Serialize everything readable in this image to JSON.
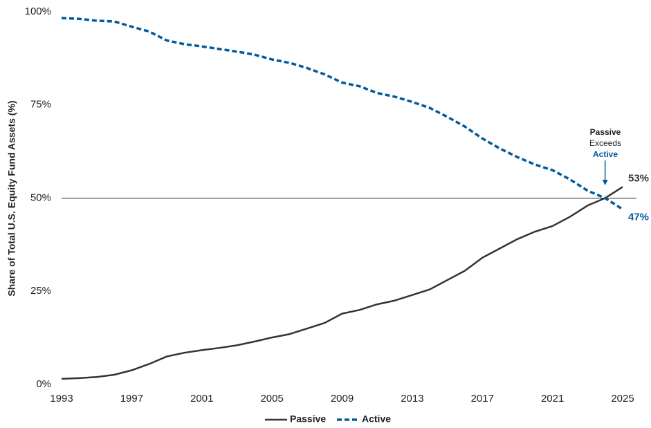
{
  "chart_data": {
    "type": "line",
    "y_label": "Share of Total U.S. Equity Fund Assets (%)",
    "x": [
      1993,
      1994,
      1995,
      1996,
      1997,
      1998,
      1999,
      2000,
      2001,
      2002,
      2003,
      2004,
      2005,
      2006,
      2007,
      2008,
      2009,
      2010,
      2011,
      2012,
      2013,
      2014,
      2015,
      2016,
      2017,
      2018,
      2019,
      2020,
      2021,
      2022,
      2023,
      2024,
      2025
    ],
    "series": [
      {
        "name": "Passive",
        "color": "#333333",
        "dashed": false,
        "values": [
          1.5,
          1.7,
          2.0,
          2.6,
          3.8,
          5.5,
          7.5,
          8.5,
          9.2,
          9.8,
          10.5,
          11.5,
          12.6,
          13.5,
          15,
          16.5,
          19,
          20,
          21.5,
          22.5,
          24,
          25.5,
          28,
          30.5,
          34,
          36.5,
          39,
          41,
          42.5,
          45,
          48,
          50,
          53
        ],
        "value_labels": [
          null,
          null,
          null,
          null,
          null,
          null,
          null,
          null,
          null,
          null,
          null,
          null,
          null,
          null,
          null,
          null,
          null,
          null,
          null,
          null,
          null,
          null,
          null,
          null,
          null,
          null,
          null,
          null,
          null,
          null,
          null,
          null,
          "53%"
        ]
      },
      {
        "name": "Active",
        "color": "#005a9c",
        "dashed": true,
        "values": [
          98.3,
          98.1,
          97.6,
          97.4,
          96.0,
          94.7,
          92.3,
          91.3,
          90.7,
          90.0,
          89.3,
          88.5,
          87.2,
          86.3,
          84.9,
          83.2,
          81.0,
          80.0,
          78.2,
          77.2,
          75.8,
          74.2,
          71.8,
          69.2,
          66.0,
          63.3,
          61.0,
          59.0,
          57.5,
          55.0,
          52.0,
          50.0,
          47
        ],
        "value_labels": [
          null,
          null,
          null,
          null,
          null,
          null,
          null,
          null,
          null,
          null,
          null,
          null,
          null,
          null,
          null,
          null,
          null,
          null,
          null,
          null,
          null,
          null,
          null,
          null,
          null,
          null,
          null,
          null,
          null,
          null,
          null,
          null,
          "47%"
        ]
      }
    ],
    "xlim": [
      1993,
      2025
    ],
    "xticks": [
      1993,
      1997,
      2001,
      2005,
      2009,
      2013,
      2017,
      2021,
      2025
    ],
    "ylim": [
      0,
      100
    ],
    "yticks": [
      {
        "value": 0,
        "label": "0%"
      },
      {
        "value": 25,
        "label": "25%"
      },
      {
        "value": 50,
        "label": "50%"
      },
      {
        "value": 75,
        "label": "75%"
      },
      {
        "value": 100,
        "label": "100%"
      }
    ],
    "reference_line": 50,
    "annotation": {
      "x": 2024,
      "lines": [
        "Passive",
        "Exceeds",
        "Active"
      ]
    },
    "legend": "bottom"
  }
}
